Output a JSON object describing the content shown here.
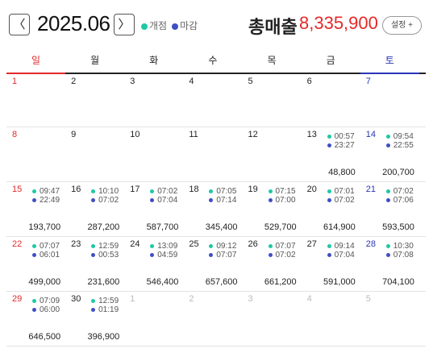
{
  "header": {
    "prev_label": "〈",
    "next_label": "〉",
    "month": "2025.06",
    "legend_open": "개점",
    "legend_close": "마감",
    "total_label": "총매출",
    "total_value": "8,335,900",
    "settings_label": "설정 +"
  },
  "colors": {
    "open_dot": "#1ec9a5",
    "close_dot": "#3f4fc4",
    "sunday": "#e52929",
    "saturday": "#2a35b8"
  },
  "weekdays": [
    "일",
    "월",
    "화",
    "수",
    "목",
    "금",
    "토"
  ],
  "weeks": [
    [
      {
        "day": "1"
      },
      {
        "day": "2"
      },
      {
        "day": "3"
      },
      {
        "day": "4"
      },
      {
        "day": "5"
      },
      {
        "day": "6"
      },
      {
        "day": "7"
      }
    ],
    [
      {
        "day": "8"
      },
      {
        "day": "9"
      },
      {
        "day": "10"
      },
      {
        "day": "11"
      },
      {
        "day": "12"
      },
      {
        "day": "13",
        "open": "00:57",
        "close": "23:27",
        "sales": "48,800"
      },
      {
        "day": "14",
        "open": "09:54",
        "close": "22:55",
        "sales": "200,700"
      }
    ],
    [
      {
        "day": "15",
        "open": "09:47",
        "close": "22:49",
        "sales": "193,700"
      },
      {
        "day": "16",
        "open": "10:10",
        "close": "07:02",
        "sales": "287,200"
      },
      {
        "day": "17",
        "open": "07:02",
        "close": "07:04",
        "sales": "587,700"
      },
      {
        "day": "18",
        "open": "07:05",
        "close": "07:14",
        "sales": "345,400"
      },
      {
        "day": "19",
        "open": "07:15",
        "close": "07:00",
        "sales": "529,700"
      },
      {
        "day": "20",
        "open": "07:01",
        "close": "07:02",
        "sales": "614,900"
      },
      {
        "day": "21",
        "open": "07:02",
        "close": "07:06",
        "sales": "593,500"
      }
    ],
    [
      {
        "day": "22",
        "open": "07:07",
        "close": "06:01",
        "sales": "499,000"
      },
      {
        "day": "23",
        "open": "12:59",
        "close": "00:53",
        "sales": "231,600"
      },
      {
        "day": "24",
        "open": "13:09",
        "close": "04:59",
        "sales": "546,400"
      },
      {
        "day": "25",
        "open": "09:12",
        "close": "07:07",
        "sales": "657,600"
      },
      {
        "day": "26",
        "open": "07:07",
        "close": "07:02",
        "sales": "661,200"
      },
      {
        "day": "27",
        "open": "09:14",
        "close": "07:04",
        "sales": "591,000"
      },
      {
        "day": "28",
        "open": "10:30",
        "close": "07:08",
        "sales": "704,100"
      }
    ],
    [
      {
        "day": "29",
        "open": "07:09",
        "close": "06:00",
        "sales": "646,500"
      },
      {
        "day": "30",
        "open": "12:59",
        "close": "01:19",
        "sales": "396,900"
      },
      {
        "day": "1",
        "other": true
      },
      {
        "day": "2",
        "other": true
      },
      {
        "day": "3",
        "other": true
      },
      {
        "day": "4",
        "other": true
      },
      {
        "day": "5",
        "other": true
      }
    ]
  ]
}
